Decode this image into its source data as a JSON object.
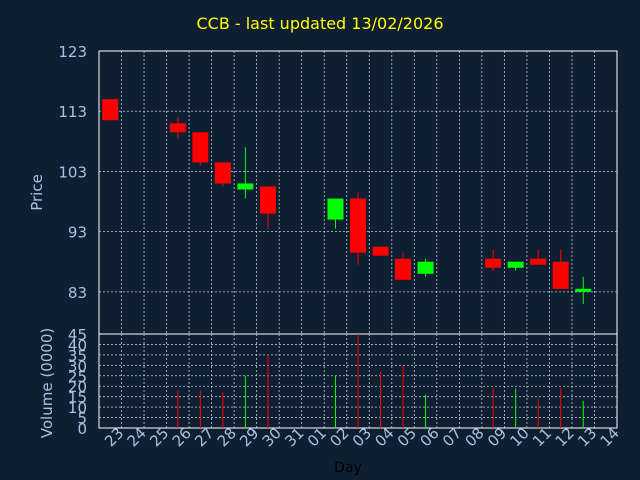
{
  "title": "CCB - last updated 13/02/2026",
  "colors": {
    "background": "#0f1f33",
    "frame": "#ffffff",
    "grid": "#c8c8c8",
    "up": "#00ff00",
    "down": "#ff0000",
    "text": "#a9c2dd",
    "title": "#ffff00"
  },
  "chart_data": {
    "type": "candlestick",
    "xlabel": "Day",
    "price_axis": {
      "label": "Price",
      "ticks": [
        "123",
        "113",
        "103",
        "93",
        "83"
      ],
      "ylim": [
        76,
        123
      ]
    },
    "volume_axis": {
      "label": "Volume (0000)",
      "ticks": [
        "45",
        "40",
        "35",
        "30",
        "25",
        "20",
        "15",
        "10",
        "5",
        "0"
      ],
      "ylim": [
        0,
        45
      ]
    },
    "days": [
      "23",
      "24",
      "25",
      "26",
      "27",
      "28",
      "29",
      "30",
      "31",
      "01",
      "02",
      "03",
      "04",
      "05",
      "06",
      "07",
      "08",
      "09",
      "10",
      "11",
      "12",
      "13",
      "14"
    ],
    "candles": [
      {
        "day": "23",
        "open": 115.0,
        "high": 115.0,
        "low": 111.5,
        "close": 111.5,
        "volume": 0
      },
      {
        "day": "26",
        "open": 111.0,
        "high": 112.0,
        "low": 108.5,
        "close": 109.5,
        "volume": 18
      },
      {
        "day": "27",
        "open": 109.5,
        "high": 109.5,
        "low": 104.0,
        "close": 104.5,
        "volume": 18
      },
      {
        "day": "28",
        "open": 104.5,
        "high": 104.5,
        "low": 100.5,
        "close": 101.0,
        "volume": 17
      },
      {
        "day": "29",
        "open": 100.0,
        "high": 107.0,
        "low": 98.5,
        "close": 101.0,
        "volume": 25
      },
      {
        "day": "30",
        "open": 100.5,
        "high": 100.5,
        "low": 93.5,
        "close": 96.0,
        "volume": 35
      },
      {
        "day": "02",
        "open": 95.0,
        "high": 98.5,
        "low": 93.5,
        "close": 98.5,
        "volume": 25
      },
      {
        "day": "03",
        "open": 98.5,
        "high": 99.5,
        "low": 87.5,
        "close": 89.5,
        "volume": 45
      },
      {
        "day": "04",
        "open": 90.5,
        "high": 90.5,
        "low": 89.0,
        "close": 89.0,
        "volume": 27
      },
      {
        "day": "05",
        "open": 88.5,
        "high": 89.5,
        "low": 85.0,
        "close": 85.0,
        "volume": 30
      },
      {
        "day": "06",
        "open": 86.0,
        "high": 88.5,
        "low": 85.5,
        "close": 88.0,
        "volume": 16
      },
      {
        "day": "09",
        "open": 88.5,
        "high": 90.0,
        "low": 86.5,
        "close": 87.0,
        "volume": 19
      },
      {
        "day": "10",
        "open": 87.0,
        "high": 88.0,
        "low": 86.5,
        "close": 88.0,
        "volume": 19
      },
      {
        "day": "11",
        "open": 88.5,
        "high": 90.0,
        "low": 87.5,
        "close": 87.5,
        "volume": 14
      },
      {
        "day": "12",
        "open": 88.0,
        "high": 90.0,
        "low": 83.5,
        "close": 83.5,
        "volume": 19
      },
      {
        "day": "13",
        "open": 83.0,
        "high": 85.5,
        "low": 81.0,
        "close": 83.5,
        "volume": 13
      }
    ]
  }
}
